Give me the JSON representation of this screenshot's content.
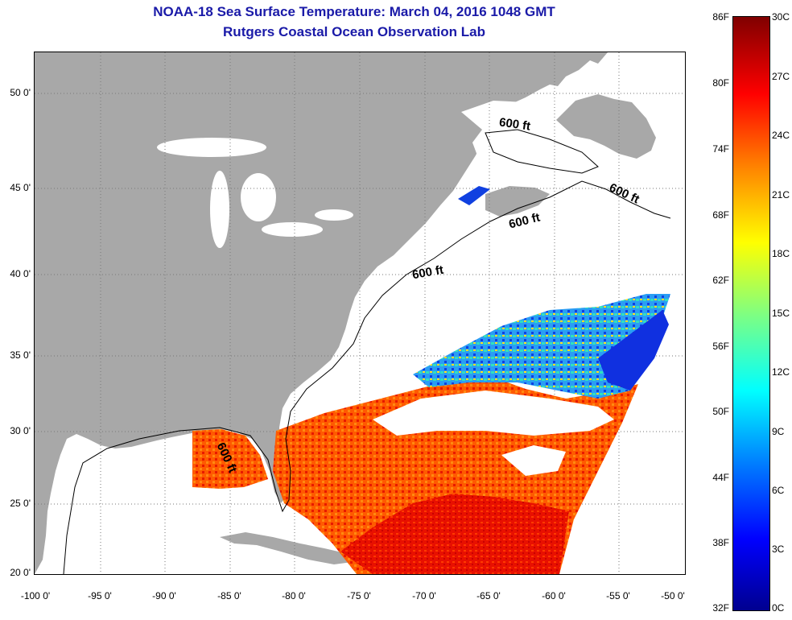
{
  "title": "NOAA-18 Sea Surface Temperature:  March 04, 2016 1048 GMT",
  "subtitle": "Rutgers Coastal Ocean Observation Lab",
  "contour_label": "600 ft",
  "lat_ticks": [
    "50 0'",
    "45 0'",
    "40 0'",
    "35 0'",
    "30 0'",
    "25 0'",
    "20 0'"
  ],
  "lon_ticks": [
    "-100 0'",
    "-95 0'",
    "-90 0'",
    "-85 0'",
    "-80 0'",
    "-75 0'",
    "-70 0'",
    "-65 0'",
    "-60 0'",
    "-55 0'",
    "-50 0'"
  ],
  "colorbar": {
    "f_labels": [
      "86F",
      "80F",
      "74F",
      "68F",
      "62F",
      "56F",
      "50F",
      "44F",
      "38F",
      "32F"
    ],
    "c_labels": [
      "30C",
      "27C",
      "24C",
      "21C",
      "18C",
      "15C",
      "12C",
      "9C",
      "6C",
      "3C",
      "0C"
    ]
  },
  "colors": {
    "land": "#a8a8a8",
    "title": "#1a1aa8",
    "warm": "#ff5a00",
    "hot": "#e81000",
    "cool": "#2a9df4",
    "cold": "#1030e0"
  }
}
